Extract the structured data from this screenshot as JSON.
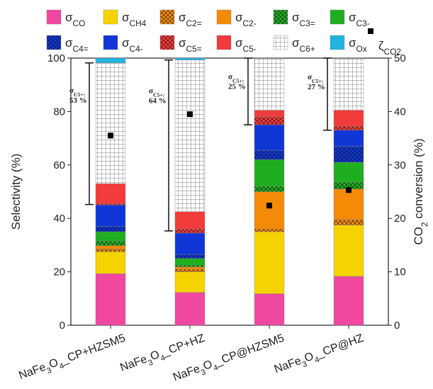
{
  "chart_data": {
    "type": "bar",
    "stacked": true,
    "categories": [
      "NaFe3O4_CP+HZSM5",
      "NaFe3O4_CP+HZ",
      "NaFe3O4_CP@HZSM5",
      "NaFe3O4_CP@HZ"
    ],
    "ylabel": "Selectivity (%)",
    "y2label": "CO2 conversion (%)",
    "ylim": [
      0,
      100
    ],
    "yticks": [
      0,
      20,
      40,
      60,
      80,
      100
    ],
    "y2lim": [
      0,
      50
    ],
    "y2ticks": [
      0,
      10,
      20,
      30,
      40,
      50
    ],
    "series": [
      {
        "name": "σCO",
        "color": "#f0479f",
        "pattern": "none",
        "values": [
          19.3,
          12.3,
          11.8,
          18.3
        ]
      },
      {
        "name": "σCH4",
        "color": "#f5d300",
        "pattern": "none",
        "values": [
          8.2,
          7.7,
          23.2,
          19.2
        ]
      },
      {
        "name": "σC2=",
        "color": "#f58a07",
        "pattern": "crosshatch",
        "values": [
          1,
          1,
          1,
          2
        ]
      },
      {
        "name": "σC2-",
        "color": "#f58a07",
        "pattern": "none",
        "values": [
          1.3,
          0.8,
          14,
          11.5
        ]
      },
      {
        "name": "σC3=",
        "color": "#1fae1f",
        "pattern": "crosshatch",
        "values": [
          1.7,
          0.7,
          2,
          2.5
        ]
      },
      {
        "name": "σC3-",
        "color": "#1fae1f",
        "pattern": "none",
        "values": [
          3.5,
          2.5,
          10,
          7.5
        ]
      },
      {
        "name": "σC4=",
        "color": "#1036d6",
        "pattern": "crosshatch",
        "values": [
          2,
          1.5,
          3.5,
          6
        ]
      },
      {
        "name": "σC4-",
        "color": "#1036d6",
        "pattern": "none",
        "values": [
          8,
          8,
          9.5,
          6
        ]
      },
      {
        "name": "σC5=",
        "color": "#f23b3b",
        "pattern": "crosshatch",
        "values": [
          0.5,
          1.5,
          3,
          1.5
        ]
      },
      {
        "name": "σC5-",
        "color": "#f23b3b",
        "pattern": "none",
        "values": [
          7.5,
          6.5,
          2.5,
          6
        ]
      },
      {
        "name": "σC6+",
        "color": "#ffffff",
        "pattern": "grid",
        "values": [
          45.2,
          56.8,
          19.5,
          19.5
        ]
      },
      {
        "name": "σOx",
        "color": "#1fb4e0",
        "pattern": "none",
        "values": [
          1.8,
          0.7,
          0,
          0
        ]
      }
    ],
    "markers": {
      "type": "scatter",
      "name": "ζCO2",
      "color": "#000000",
      "axis": "y2",
      "values": [
        35.5,
        39.5,
        22.4,
        25.3
      ]
    },
    "annotations": [
      {
        "label": "σC5+:",
        "value": 53,
        "value_label": "53 %"
      },
      {
        "label": "σC5+:",
        "value": 64,
        "value_label": "64 %"
      },
      {
        "label": "σC5+:",
        "value": 25,
        "value_label": "25 %"
      },
      {
        "label": "σC5+:",
        "value": 27,
        "value_label": "27 %"
      }
    ]
  }
}
